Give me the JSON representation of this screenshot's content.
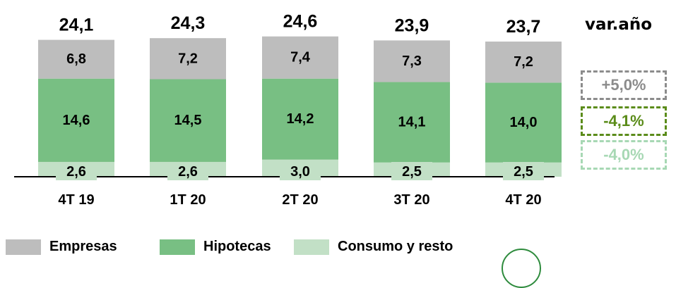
{
  "chart_data": {
    "type": "bar",
    "stacked": true,
    "categories": [
      "4T 19",
      "1T 20",
      "2T 20",
      "3T 20",
      "4T 20"
    ],
    "series": [
      {
        "name": "Consumo y resto",
        "values": [
          2.6,
          2.6,
          3.0,
          2.5,
          2.5
        ],
        "labels": [
          "2,6",
          "2,6",
          "3,0",
          "2,5",
          "2,5"
        ],
        "color": "#c2e0c6"
      },
      {
        "name": "Hipotecas",
        "values": [
          14.6,
          14.5,
          14.2,
          14.1,
          14.0
        ],
        "labels": [
          "14,6",
          "14,5",
          "14,2",
          "14,1",
          "14,0"
        ],
        "color": "#78bf83"
      },
      {
        "name": "Empresas",
        "values": [
          6.8,
          7.2,
          7.4,
          7.3,
          7.2
        ],
        "labels": [
          "6,8",
          "7,2",
          "7,4",
          "7,3",
          "7,2"
        ],
        "color": "#bdbdbd"
      }
    ],
    "totals": [
      24.1,
      24.3,
      24.6,
      23.9,
      23.7
    ],
    "total_labels": [
      "24,1",
      "24,3",
      "24,6",
      "23,9",
      "23,7"
    ],
    "legend_position": "bottom",
    "grid": false
  },
  "variation": {
    "title": "var.año",
    "items": [
      {
        "label": "+5,0%",
        "color": "#8c8c8c",
        "series": "Empresas"
      },
      {
        "label": "-4,1%",
        "color": "#5b8c1a",
        "series": "Hipotecas"
      },
      {
        "label": "-4,0%",
        "color": "#a7d8b4",
        "series": "Consumo y resto"
      }
    ]
  }
}
